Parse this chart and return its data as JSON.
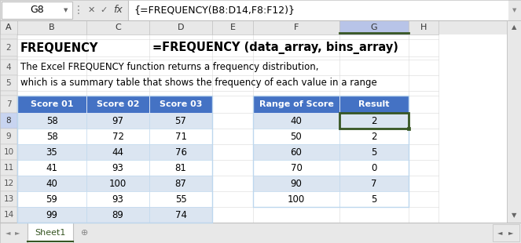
{
  "formula_bar_cell": "G8",
  "formula_bar_text": "{=FREQUENCY(B8:D14,F8:F12)}",
  "title_bold": "FREQUENCY",
  "title_formula": "=FREQUENCY (data_array, bins_array)",
  "desc_line1": "The Excel FREQUENCY function returns a frequency distribution,",
  "desc_line2": "which is a summary table that shows the frequency of each value in a range",
  "col_headers": [
    "A",
    "B",
    "C",
    "D",
    "E",
    "F",
    "G",
    "H"
  ],
  "score_headers": [
    "Score 01",
    "Score 02",
    "Score 03"
  ],
  "score_data": [
    [
      58,
      97,
      57
    ],
    [
      58,
      72,
      71
    ],
    [
      35,
      44,
      76
    ],
    [
      41,
      93,
      81
    ],
    [
      40,
      100,
      87
    ],
    [
      59,
      93,
      55
    ],
    [
      99,
      89,
      74
    ]
  ],
  "range_headers": [
    "Range of Score",
    "Result"
  ],
  "range_data": [
    [
      40,
      2
    ],
    [
      50,
      2
    ],
    [
      60,
      5
    ],
    [
      70,
      0
    ],
    [
      90,
      7
    ],
    [
      100,
      5
    ]
  ],
  "header_bg": "#4472C4",
  "header_fg": "#FFFFFF",
  "row_alt_blue": "#DBE5F1",
  "row_white": "#FFFFFF",
  "grid_color": "#BDD7EE",
  "selected_cell_border": "#375623",
  "tab_active_fg": "#375623",
  "tab_inactive_fg": "#888888",
  "ui_bg": "#E8E8E8",
  "col_header_bg": "#F2F2F2",
  "col_header_selected": "#B8C4E8",
  "row_header_bg": "#F2F2F2",
  "row_header_selected": "#C8D4F0",
  "border_light": "#C0C0C0",
  "border_med": "#A0A0A0"
}
